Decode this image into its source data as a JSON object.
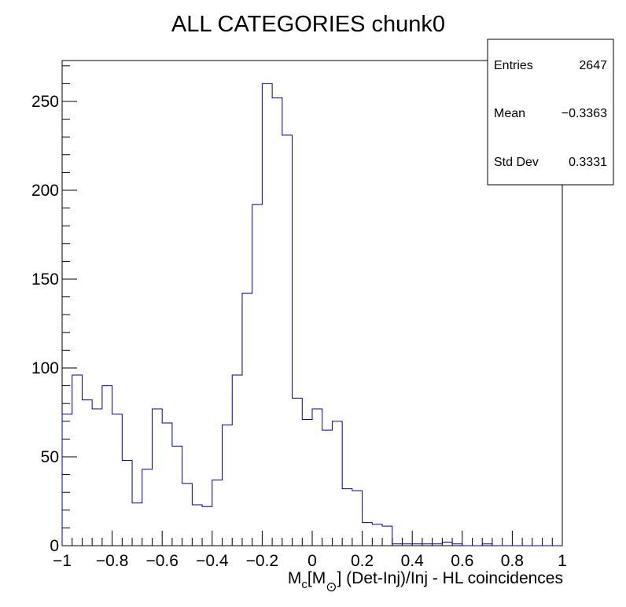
{
  "chart_data": {
    "type": "histogram",
    "title": "ALL CATEGORIES chunk0",
    "xlabel": {
      "main": "M",
      "sub1": "c",
      "bracket_open": "[M",
      "sub2": "⊙",
      "rest": "] (Det-Inj)/Inj - HL coincidences"
    },
    "ylabel": "",
    "xlim": [
      -1,
      1
    ],
    "ylim": [
      0,
      273
    ],
    "x_ticks": [
      -1,
      -0.8,
      -0.6,
      -0.4,
      -0.2,
      0,
      0.2,
      0.4,
      0.6,
      0.8,
      1
    ],
    "x_tick_labels": [
      "−1",
      "−0.8",
      "−0.6",
      "−0.4",
      "−0.2",
      "0",
      "0.2",
      "0.4",
      "0.6",
      "0.8",
      "1"
    ],
    "y_ticks": [
      0,
      50,
      100,
      150,
      200,
      250
    ],
    "y_tick_labels": [
      "0",
      "50",
      "100",
      "150",
      "200",
      "250"
    ],
    "bin_edges_start": -1,
    "bin_width": 0.04,
    "values": [
      74,
      96,
      82,
      77,
      90,
      74,
      48,
      24,
      43,
      77,
      69,
      56,
      35,
      23,
      22,
      37,
      68,
      96,
      142,
      192,
      260,
      252,
      231,
      83,
      71,
      77,
      65,
      70,
      32,
      31,
      13,
      12,
      11,
      1,
      1,
      1,
      1,
      1,
      2,
      1,
      0,
      0,
      1,
      0,
      0,
      0,
      0,
      0,
      0,
      0
    ],
    "line_color": "#000099",
    "stats": {
      "entries_label": "Entries",
      "entries_value": "2647",
      "mean_label": "Mean",
      "mean_value": "−0.3363",
      "std_label": "Std Dev",
      "std_value": "0.3331"
    }
  }
}
